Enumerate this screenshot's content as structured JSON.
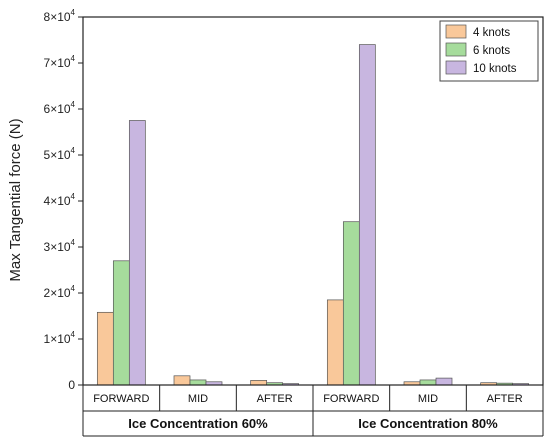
{
  "chart_data": {
    "type": "bar",
    "ylabel": "Max Tangential force (N)",
    "ylim": [
      0,
      80000
    ],
    "yticks": [
      {
        "value": 0,
        "mant": "0",
        "exp": ""
      },
      {
        "value": 10000,
        "mant": "1×10",
        "exp": "4"
      },
      {
        "value": 20000,
        "mant": "2×10",
        "exp": "4"
      },
      {
        "value": 30000,
        "mant": "3×10",
        "exp": "4"
      },
      {
        "value": 40000,
        "mant": "4×10",
        "exp": "4"
      },
      {
        "value": 50000,
        "mant": "5×10",
        "exp": "4"
      },
      {
        "value": 60000,
        "mant": "6×10",
        "exp": "4"
      },
      {
        "value": 70000,
        "mant": "7×10",
        "exp": "4"
      },
      {
        "value": 80000,
        "mant": "8×10",
        "exp": "4"
      }
    ],
    "groups": [
      "Ice Concentration 60%",
      "Ice Concentration 80%"
    ],
    "categories": [
      "FORWARD",
      "MID",
      "AFTER"
    ],
    "series": [
      {
        "name": "4 knots",
        "color": "#f9c89a",
        "values": [
          [
            15800,
            2000,
            1000
          ],
          [
            18500,
            700,
            500
          ]
        ]
      },
      {
        "name": "6 knots",
        "color": "#a6dc9c",
        "values": [
          [
            27000,
            1100,
            500
          ],
          [
            35500,
            1100,
            400
          ]
        ]
      },
      {
        "name": "10 knots",
        "color": "#c8b6e0",
        "values": [
          [
            57500,
            700,
            300
          ],
          [
            74000,
            1500,
            300
          ]
        ]
      }
    ],
    "legend_position": "top-right",
    "grid": false
  }
}
